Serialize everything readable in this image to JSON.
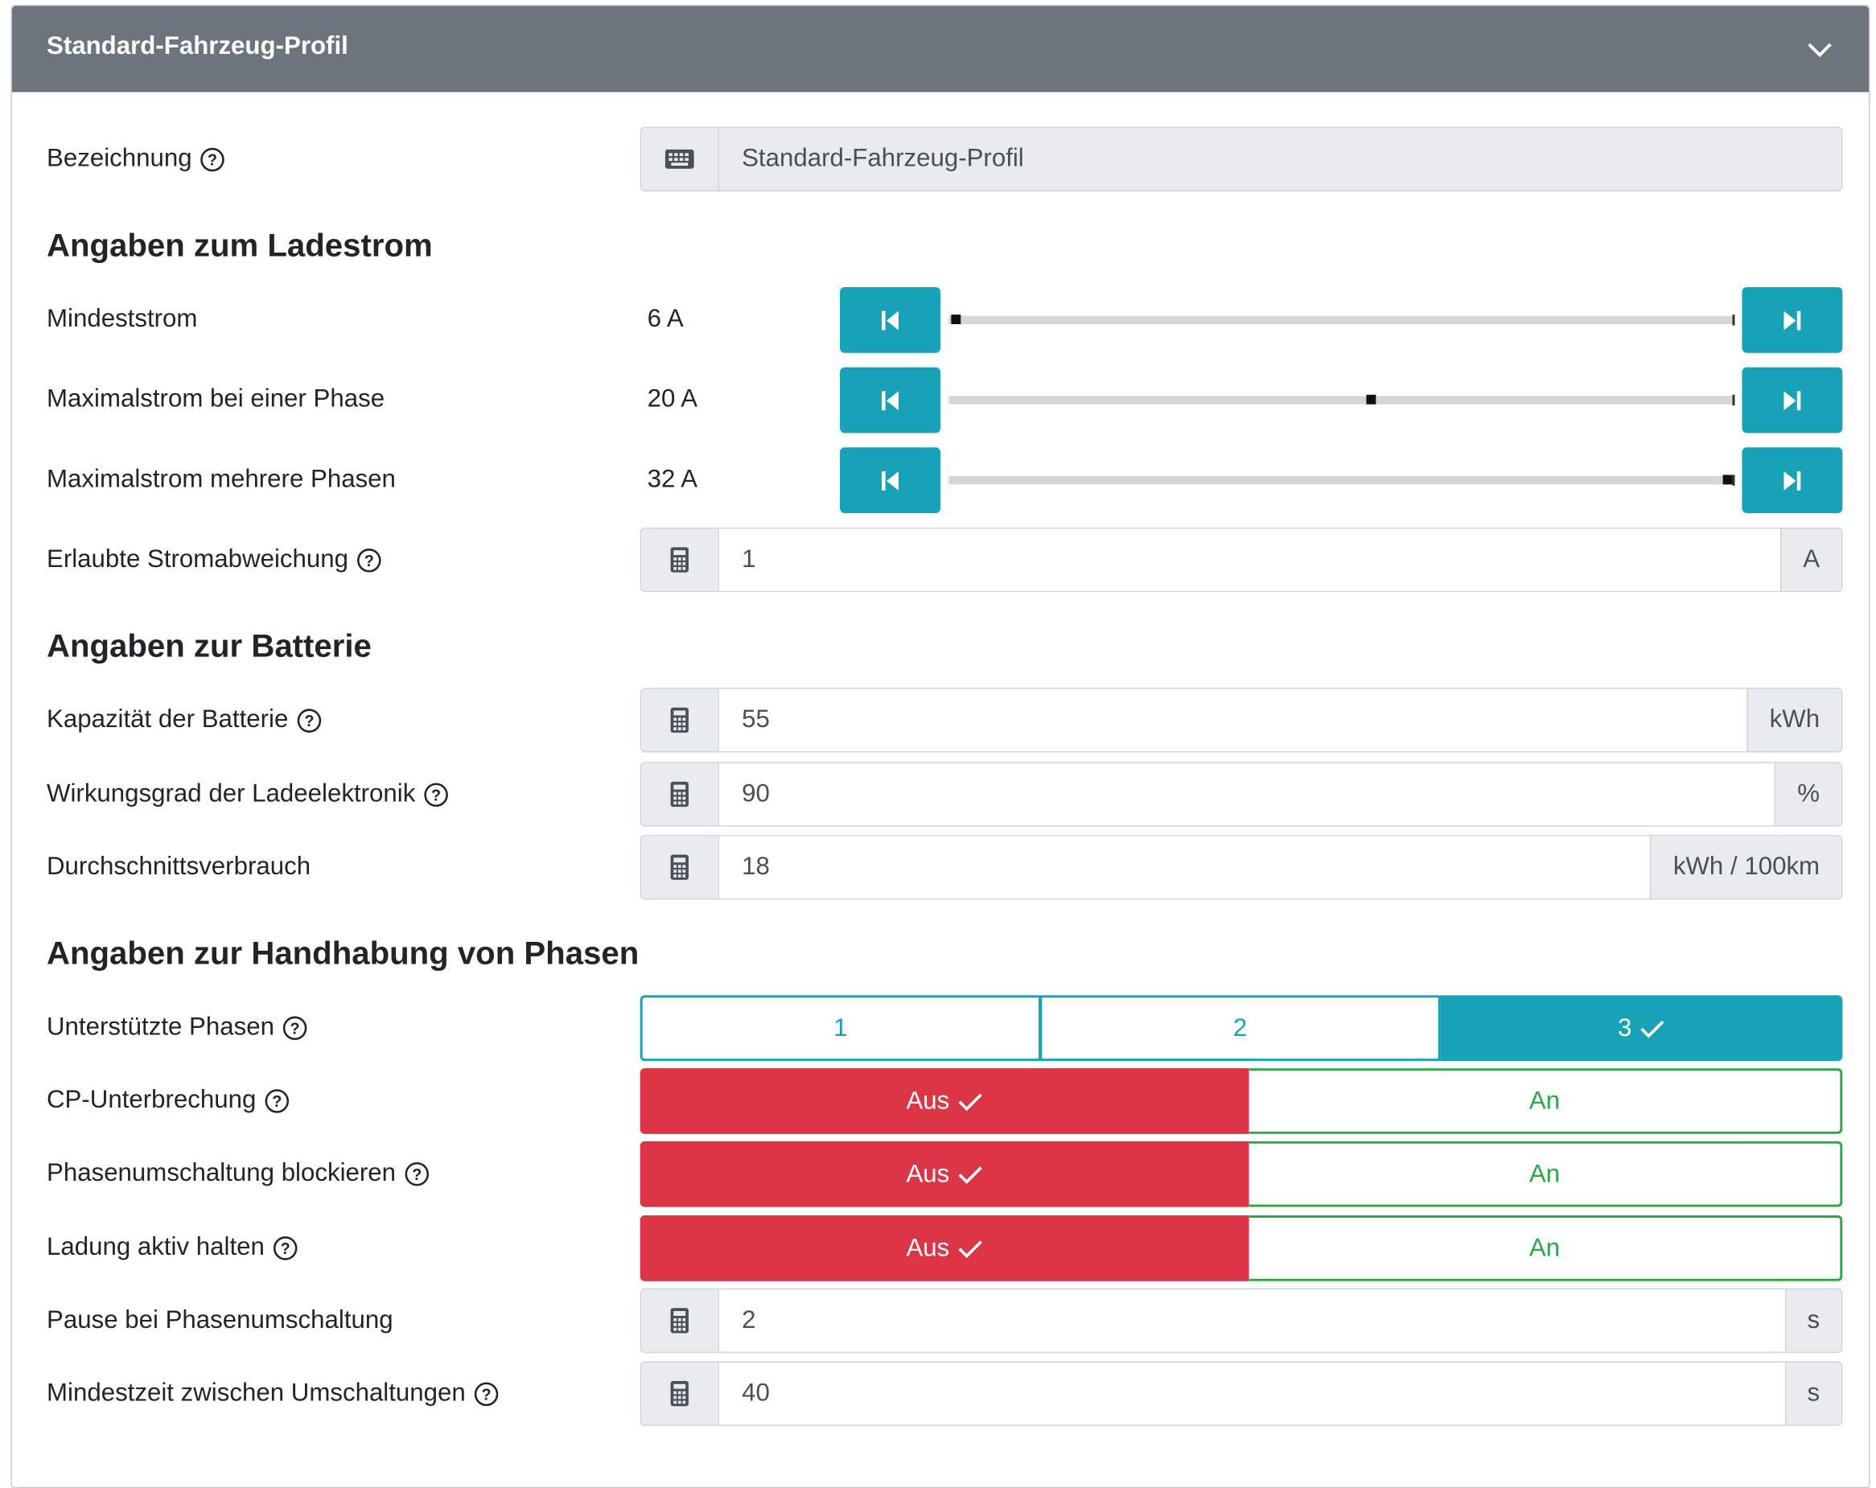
{
  "header": {
    "title": "Standard-Fahrzeug-Profil",
    "collapse_icon": "chevron-down-icon"
  },
  "bezeichnung": {
    "label": "Bezeichnung",
    "value": "Standard-Fahrzeug-Profil",
    "icon": "keyboard-icon"
  },
  "sections": {
    "ladestrom": "Angaben zum Ladestrom",
    "batterie": "Angaben zur Batterie",
    "phasen": "Angaben zur Handhabung von Phasen"
  },
  "sliders": [
    {
      "label": "Mindeststrom",
      "value_text": "6 A",
      "value": 6,
      "min": 6,
      "max": 32
    },
    {
      "label": "Maximalstrom bei einer Phase",
      "value_text": "20 A",
      "value": 20,
      "min": 6,
      "max": 32
    },
    {
      "label": "Maximalstrom mehrere Phasen",
      "value_text": "32 A",
      "value": 32,
      "min": 6,
      "max": 32
    }
  ],
  "inputs": {
    "stromabweichung": {
      "label": "Erlaubte Stromabweichung",
      "value": "1",
      "unit": "A"
    },
    "kapazitaet": {
      "label": "Kapazität der Batterie",
      "value": "55",
      "unit": "kWh"
    },
    "wirkungsgrad": {
      "label": "Wirkungsgrad der Ladeelektronik",
      "value": "90",
      "unit": "%"
    },
    "verbrauch": {
      "label": "Durchschnittsverbrauch",
      "value": "18",
      "unit": "kWh / 100km"
    },
    "pause": {
      "label": "Pause bei Phasenumschaltung",
      "value": "2",
      "unit": "s"
    },
    "mindestzeit": {
      "label": "Mindestzeit zwischen Umschaltungen",
      "value": "40",
      "unit": "s"
    }
  },
  "phasen": {
    "label": "Unterstützte Phasen",
    "options": [
      "1",
      "2",
      "3"
    ],
    "selected": "3"
  },
  "toggles": [
    {
      "label": "CP-Unterbrechung",
      "off": "Aus",
      "on": "An",
      "state": "Aus"
    },
    {
      "label": "Phasenumschaltung blockieren",
      "off": "Aus",
      "on": "An",
      "state": "Aus"
    },
    {
      "label": "Ladung aktiv halten",
      "off": "Aus",
      "on": "An",
      "state": "Aus"
    }
  ],
  "colors": {
    "header": "#6c757d",
    "info": "#17a2b8",
    "danger": "#dc3545",
    "success": "#28a745",
    "addon": "#e9ecef"
  }
}
